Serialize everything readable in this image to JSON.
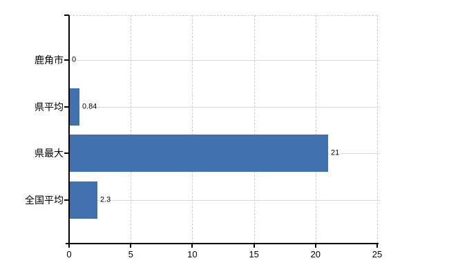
{
  "chart_data": {
    "type": "bar",
    "orientation": "horizontal",
    "title": "",
    "categories": [
      "鹿角市",
      "県平均",
      "県最大",
      "全国平均"
    ],
    "values": [
      0,
      0.84,
      21,
      2.3
    ],
    "value_labels": [
      "0",
      "0.84",
      "21",
      "2.3"
    ],
    "xlabel": "",
    "ylabel": "",
    "xlim": [
      0,
      25
    ],
    "x_ticks": [
      0,
      5,
      10,
      15,
      20,
      25
    ],
    "x_tick_labels": [
      "0",
      "5",
      "10",
      "15",
      "20",
      "25"
    ],
    "grid": {
      "vertical": "dashed",
      "horizontal": "solid",
      "top_border": "dashed"
    },
    "legend": "none",
    "bar_color": "#4170af"
  },
  "colors": {
    "bar": "#4170af",
    "axis": "#000000",
    "grid_solid": "#d9d9d9",
    "grid_dashed": "#cccccc",
    "text": "#000000",
    "background": "#ffffff"
  }
}
